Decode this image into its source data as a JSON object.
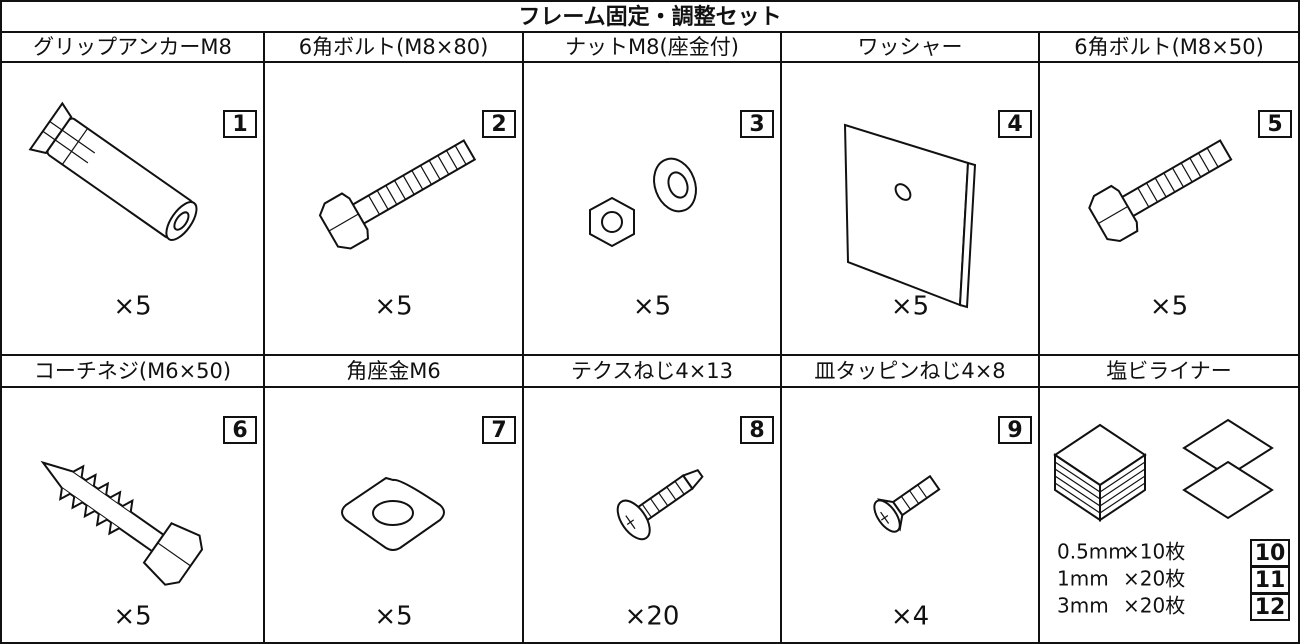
{
  "title": "フレーム固定・調整セット",
  "items": [
    {
      "name": "グリップアンカーM8",
      "number": "1",
      "quantity": "×5"
    },
    {
      "name": "6角ボルト(M8×80)",
      "number": "2",
      "quantity": "×5"
    },
    {
      "name": "ナットM8(座金付)",
      "number": "3",
      "quantity": "×5"
    },
    {
      "name": "ワッシャー",
      "number": "4",
      "quantity": "×5"
    },
    {
      "name": "6角ボルト(M8×50)",
      "number": "5",
      "quantity": "×5"
    },
    {
      "name": "コーチネジ(M6×50)",
      "number": "6",
      "quantity": "×5"
    },
    {
      "name": "角座金M6",
      "number": "7",
      "quantity": "×5"
    },
    {
      "name": "テクスねじ4×13",
      "number": "8",
      "quantity": "×20"
    },
    {
      "name": "皿タッピンねじ4×8",
      "number": "9",
      "quantity": "×4"
    }
  ],
  "liner": {
    "name": "塩ビライナー",
    "rows": [
      {
        "thickness": "0.5mm",
        "quantity": "×10枚",
        "number": "10"
      },
      {
        "thickness": "1mm",
        "quantity": "×20枚",
        "number": "11"
      },
      {
        "thickness": "3mm",
        "quantity": "×20枚",
        "number": "12"
      }
    ]
  }
}
